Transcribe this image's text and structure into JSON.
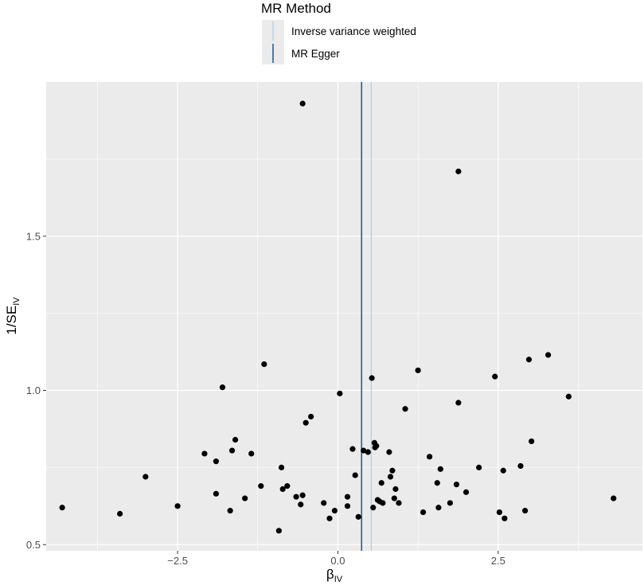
{
  "chart_data": {
    "type": "scatter",
    "title": "",
    "xlabel_main": "β",
    "xlabel_sub": "IV",
    "ylabel_main": "1/SE",
    "ylabel_sub": "IV",
    "xlim": [
      -4.55,
      4.75
    ],
    "ylim": [
      0.48,
      2.0
    ],
    "xticks": [
      -2.5,
      0.0,
      2.5
    ],
    "xtick_labels": [
      "−2.5",
      "0.0",
      "2.5"
    ],
    "yticks": [
      0.5,
      1.0,
      1.5
    ],
    "ytick_labels": [
      "0.5",
      "1.0",
      "1.5"
    ],
    "grid": true,
    "legend": {
      "title": "MR Method",
      "position": "top",
      "entries": [
        {
          "label": "Inverse variance weighted",
          "color": "#a6cfe5"
        },
        {
          "label": "MR Egger",
          "color": "#1f5f9e"
        }
      ]
    },
    "vlines": [
      {
        "method": "Inverse variance weighted",
        "x": 0.52,
        "color": "#a6cfe5"
      },
      {
        "method": "MR Egger",
        "x": 0.37,
        "color": "#1f5f9e"
      }
    ],
    "points": [
      {
        "x": -4.3,
        "y": 0.62
      },
      {
        "x": -3.4,
        "y": 0.6
      },
      {
        "x": -3.0,
        "y": 0.72
      },
      {
        "x": -2.5,
        "y": 0.625
      },
      {
        "x": -2.08,
        "y": 0.795
      },
      {
        "x": -1.9,
        "y": 0.77
      },
      {
        "x": -1.9,
        "y": 0.665
      },
      {
        "x": -1.8,
        "y": 1.01
      },
      {
        "x": -1.68,
        "y": 0.61
      },
      {
        "x": -1.65,
        "y": 0.805
      },
      {
        "x": -1.6,
        "y": 0.84
      },
      {
        "x": -1.45,
        "y": 0.65
      },
      {
        "x": -1.35,
        "y": 0.795
      },
      {
        "x": -1.2,
        "y": 0.69
      },
      {
        "x": -1.15,
        "y": 1.085
      },
      {
        "x": -0.92,
        "y": 0.545
      },
      {
        "x": -0.88,
        "y": 0.75
      },
      {
        "x": -0.86,
        "y": 0.68
      },
      {
        "x": -0.79,
        "y": 0.69
      },
      {
        "x": -0.65,
        "y": 0.655
      },
      {
        "x": -0.58,
        "y": 0.63
      },
      {
        "x": -0.55,
        "y": 0.66
      },
      {
        "x": -0.55,
        "y": 1.93
      },
      {
        "x": -0.5,
        "y": 0.895
      },
      {
        "x": -0.42,
        "y": 0.915
      },
      {
        "x": -0.22,
        "y": 0.635
      },
      {
        "x": -0.13,
        "y": 0.585
      },
      {
        "x": -0.05,
        "y": 0.61
      },
      {
        "x": 0.03,
        "y": 0.99
      },
      {
        "x": 0.15,
        "y": 0.655
      },
      {
        "x": 0.15,
        "y": 0.625
      },
      {
        "x": 0.23,
        "y": 0.81
      },
      {
        "x": 0.27,
        "y": 0.725
      },
      {
        "x": 0.32,
        "y": 0.59
      },
      {
        "x": 0.4,
        "y": 0.805
      },
      {
        "x": 0.47,
        "y": 0.8
      },
      {
        "x": 0.53,
        "y": 1.04
      },
      {
        "x": 0.55,
        "y": 0.62
      },
      {
        "x": 0.57,
        "y": 0.83
      },
      {
        "x": 0.6,
        "y": 0.82
      },
      {
        "x": 0.58,
        "y": 0.815
      },
      {
        "x": 0.62,
        "y": 0.645
      },
      {
        "x": 0.65,
        "y": 0.64
      },
      {
        "x": 0.68,
        "y": 0.7
      },
      {
        "x": 0.7,
        "y": 0.635
      },
      {
        "x": 0.8,
        "y": 0.8
      },
      {
        "x": 0.82,
        "y": 0.72
      },
      {
        "x": 0.85,
        "y": 0.74
      },
      {
        "x": 0.88,
        "y": 0.65
      },
      {
        "x": 0.9,
        "y": 0.68
      },
      {
        "x": 0.95,
        "y": 0.635
      },
      {
        "x": 1.05,
        "y": 0.94
      },
      {
        "x": 1.25,
        "y": 1.065
      },
      {
        "x": 1.33,
        "y": 0.605
      },
      {
        "x": 1.43,
        "y": 0.785
      },
      {
        "x": 1.55,
        "y": 0.7
      },
      {
        "x": 1.57,
        "y": 0.62
      },
      {
        "x": 1.6,
        "y": 0.745
      },
      {
        "x": 1.75,
        "y": 0.635
      },
      {
        "x": 1.85,
        "y": 0.695
      },
      {
        "x": 1.88,
        "y": 0.96
      },
      {
        "x": 1.88,
        "y": 1.71
      },
      {
        "x": 2.0,
        "y": 0.67
      },
      {
        "x": 2.2,
        "y": 0.75
      },
      {
        "x": 2.45,
        "y": 1.045
      },
      {
        "x": 2.52,
        "y": 0.605
      },
      {
        "x": 2.58,
        "y": 0.74
      },
      {
        "x": 2.6,
        "y": 0.585
      },
      {
        "x": 2.85,
        "y": 0.755
      },
      {
        "x": 2.92,
        "y": 0.61
      },
      {
        "x": 2.98,
        "y": 1.1
      },
      {
        "x": 3.02,
        "y": 0.835
      },
      {
        "x": 3.28,
        "y": 1.115
      },
      {
        "x": 3.6,
        "y": 0.98
      },
      {
        "x": 4.3,
        "y": 0.65
      }
    ]
  }
}
